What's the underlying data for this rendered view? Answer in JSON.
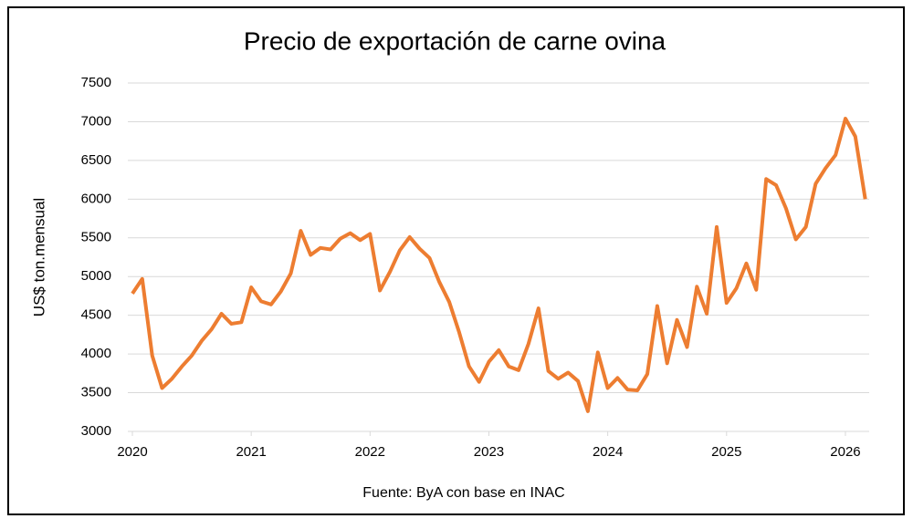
{
  "chart_data": {
    "type": "line",
    "title": "Precio de exportación de carne ovina",
    "y_label": "US$ ton.mensual",
    "source": "Fuente: ByA con base en INAC",
    "x": [
      2020,
      2020.083,
      2020.167,
      2020.25,
      2020.333,
      2020.417,
      2020.5,
      2020.583,
      2020.667,
      2020.75,
      2020.833,
      2020.917,
      2021,
      2021.083,
      2021.167,
      2021.25,
      2021.333,
      2021.417,
      2021.5,
      2021.583,
      2021.667,
      2021.75,
      2021.833,
      2021.917,
      2022,
      2022.083,
      2022.167,
      2022.25,
      2022.333,
      2022.417,
      2022.5,
      2022.583,
      2022.667,
      2022.75,
      2022.833,
      2022.917,
      2023,
      2023.083,
      2023.167,
      2023.25,
      2023.333,
      2023.417,
      2023.5,
      2023.583,
      2023.667,
      2023.75,
      2023.833,
      2023.917,
      2024,
      2024.083,
      2024.167,
      2024.25,
      2024.333,
      2024.417,
      2024.5,
      2024.583,
      2024.667,
      2024.75,
      2024.833,
      2024.917,
      2025,
      2025.083,
      2025.167,
      2025.25,
      2025.333,
      2025.417,
      2025.5,
      2025.583,
      2025.667,
      2025.75,
      2025.833,
      2025.917,
      2026,
      2026.083,
      2026.167
    ],
    "series": [
      {
        "name": "Precio",
        "color": "#ed7d31",
        "values": [
          4780,
          4970,
          3980,
          3560,
          3680,
          3840,
          3980,
          4170,
          4320,
          4520,
          4390,
          4410,
          4860,
          4680,
          4640,
          4810,
          5040,
          5590,
          5280,
          5370,
          5350,
          5490,
          5560,
          5470,
          5550,
          4820,
          5060,
          5340,
          5510,
          5360,
          5240,
          4930,
          4670,
          4280,
          3840,
          3640,
          3900,
          4050,
          3840,
          3790,
          4130,
          4590,
          3780,
          3680,
          3760,
          3650,
          3260,
          4020,
          3560,
          3690,
          3540,
          3530,
          3740,
          4620,
          3880,
          4440,
          4090,
          4870,
          4520,
          5640,
          4660,
          4850,
          5170,
          4830,
          6260,
          6180,
          5880,
          5480,
          5640,
          6200,
          6400,
          6570,
          7040,
          6810,
          6000
        ]
      }
    ],
    "xlim": [
      2020,
      2026.2
    ],
    "xticks": [
      2020,
      2021,
      2022,
      2023,
      2024,
      2025,
      2026
    ],
    "ylim": [
      3000,
      7500
    ],
    "yticks": [
      3000,
      3500,
      4000,
      4500,
      5000,
      5500,
      6000,
      6500,
      7000,
      7500
    ],
    "grid": true
  }
}
